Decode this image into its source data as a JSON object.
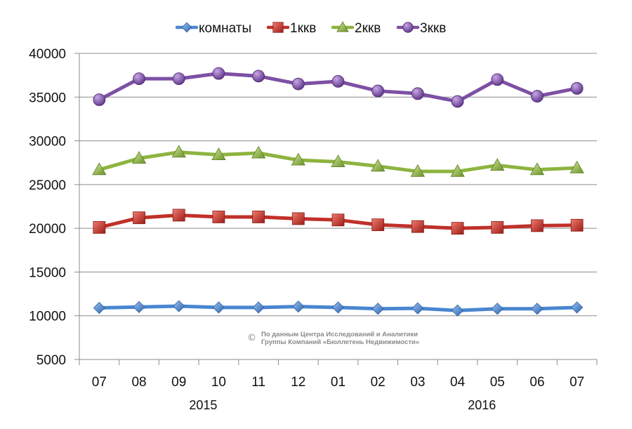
{
  "chart_data": {
    "type": "line",
    "title": "",
    "xlabel": "",
    "ylabel": "",
    "categories": [
      "07",
      "08",
      "09",
      "10",
      "11",
      "12",
      "01",
      "02",
      "03",
      "04",
      "05",
      "06",
      "07"
    ],
    "year_labels": [
      {
        "label": "2015",
        "under_category_index": 3
      },
      {
        "label": "2016",
        "under_category_index": 10
      }
    ],
    "ylim": [
      5000,
      40000
    ],
    "yticks": [
      "5000",
      "10000",
      "15000",
      "20000",
      "25000",
      "30000",
      "35000",
      "40000"
    ],
    "grid": true,
    "legend_position": "top",
    "series": [
      {
        "name": "комнаты",
        "color": "#4a86d0",
        "marker": "diamond",
        "values": [
          10900,
          11000,
          11100,
          10950,
          10950,
          11050,
          10950,
          10800,
          10850,
          10600,
          10800,
          10800,
          10950
        ]
      },
      {
        "name": "1ккв",
        "color": "#c0312a",
        "marker": "square",
        "values": [
          20100,
          21200,
          21500,
          21300,
          21300,
          21100,
          20950,
          20400,
          20200,
          20000,
          20100,
          20300,
          20350
        ]
      },
      {
        "name": "2ккв",
        "color": "#8db43f",
        "marker": "triangle",
        "values": [
          26700,
          28000,
          28700,
          28400,
          28600,
          27800,
          27600,
          27100,
          26500,
          26500,
          27200,
          26700,
          26900
        ]
      },
      {
        "name": "3ккв",
        "color": "#7d50a4",
        "marker": "circle",
        "values": [
          34700,
          37100,
          37100,
          37700,
          37400,
          36500,
          36800,
          35700,
          35400,
          34500,
          37000,
          35100,
          36000
        ]
      }
    ],
    "annotation": {
      "symbol": "©",
      "line1": "По данным Центра Исследований и Аналитики",
      "line2": "Группы Компаний «Бюллетень Недвижимости»"
    }
  }
}
